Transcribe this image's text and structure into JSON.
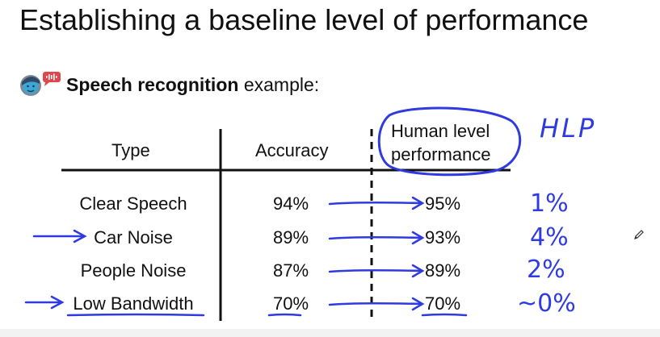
{
  "slide": {
    "title": "Establishing a baseline level of performance",
    "subtitle_bold": "Speech recognition",
    "subtitle_rest": " example:",
    "avatar_icon": "speaking-person-icon"
  },
  "table": {
    "headers": {
      "type": "Type",
      "accuracy": "Accuracy",
      "human_line1": "Human level",
      "human_line2": "performance"
    },
    "rows": [
      {
        "type": "Clear Speech",
        "accuracy": "94%",
        "hlp": "95%",
        "gap": "1%"
      },
      {
        "type": "Car Noise",
        "accuracy": "89%",
        "hlp": "93%",
        "gap": "4%"
      },
      {
        "type": "People Noise",
        "accuracy": "87%",
        "hlp": "89%",
        "gap": "2%"
      },
      {
        "type": "Low Bandwidth",
        "accuracy": "70%",
        "hlp": "70%",
        "gap": "~0%"
      }
    ]
  },
  "annotations": {
    "hlp_label": "HLP",
    "ink_color": "#2f3be0"
  }
}
